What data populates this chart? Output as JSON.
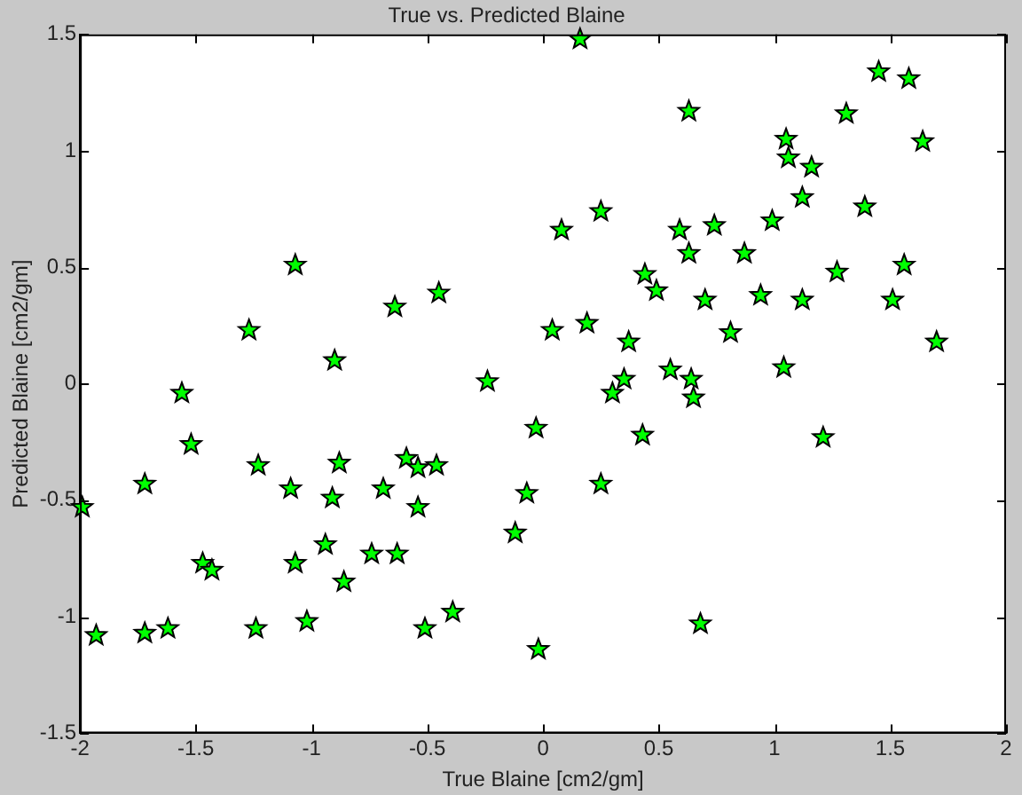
{
  "chart_data": {
    "type": "scatter",
    "title": "True vs. Predicted Blaine",
    "xlabel": "True Blaine [cm2/gm]",
    "ylabel": "Predicted Blaine [cm2/gm]",
    "xlim": [
      -2,
      2
    ],
    "xticks": [
      -2,
      -1.5,
      -1,
      -0.5,
      0,
      0.5,
      1,
      1.5,
      2
    ],
    "ylim": [
      -1.5,
      1.5
    ],
    "yticks": [
      -1.5,
      -1,
      -0.5,
      0,
      0.5,
      1,
      1.5
    ],
    "grid": false,
    "legend": false,
    "marker": "star",
    "series": [
      {
        "color": "#00ff00",
        "x": [
          -1.27,
          -1.07,
          -0.9,
          -0.64,
          -0.45,
          -0.24,
          0.16,
          0.63,
          1.45,
          1.58,
          1.31,
          1.05,
          1.06,
          1.16,
          1.64,
          1.12,
          1.39,
          0.25,
          0.08,
          0.59,
          0.74,
          0.99,
          0.63,
          0.87,
          0.44,
          0.49,
          1.27,
          1.56,
          0.7,
          0.94,
          1.12,
          1.51,
          0.04,
          0.19,
          0.37,
          0.81,
          1.7,
          0.35,
          0.55,
          0.64,
          1.04,
          0.3,
          0.65,
          -0.03,
          0.43,
          1.21,
          -0.07,
          0.25,
          -0.12,
          0.68,
          -0.02,
          -1.56,
          -1.52,
          -1.72,
          -1.99,
          -1.23,
          -1.09,
          -0.88,
          -0.91,
          -0.69,
          -0.59,
          -0.54,
          -0.46,
          -0.54,
          -1.47,
          -1.43,
          -0.94,
          -1.07,
          -0.74,
          -0.63,
          -0.86,
          -1.93,
          -1.72,
          -1.62,
          -1.24,
          -1.02,
          -0.51,
          -0.39
        ],
        "values": [
          0.23,
          0.51,
          0.1,
          0.33,
          0.39,
          0.01,
          1.48,
          1.17,
          1.34,
          1.31,
          1.16,
          1.05,
          0.97,
          0.93,
          1.04,
          0.8,
          0.76,
          0.74,
          0.66,
          0.66,
          0.68,
          0.7,
          0.56,
          0.56,
          0.47,
          0.4,
          0.48,
          0.51,
          0.36,
          0.38,
          0.36,
          0.36,
          0.23,
          0.26,
          0.18,
          0.22,
          0.18,
          0.02,
          0.06,
          0.02,
          0.07,
          -0.04,
          -0.06,
          -0.19,
          -0.22,
          -0.23,
          -0.47,
          -0.43,
          -0.64,
          -1.03,
          -1.14,
          -0.04,
          -0.26,
          -0.43,
          -0.53,
          -0.35,
          -0.45,
          -0.34,
          -0.49,
          -0.45,
          -0.32,
          -0.36,
          -0.35,
          -0.53,
          -0.77,
          -0.8,
          -0.69,
          -0.77,
          -0.73,
          -0.73,
          -0.85,
          -1.08,
          -1.07,
          -1.05,
          -1.05,
          -1.02,
          -1.05,
          -0.98
        ]
      }
    ]
  }
}
